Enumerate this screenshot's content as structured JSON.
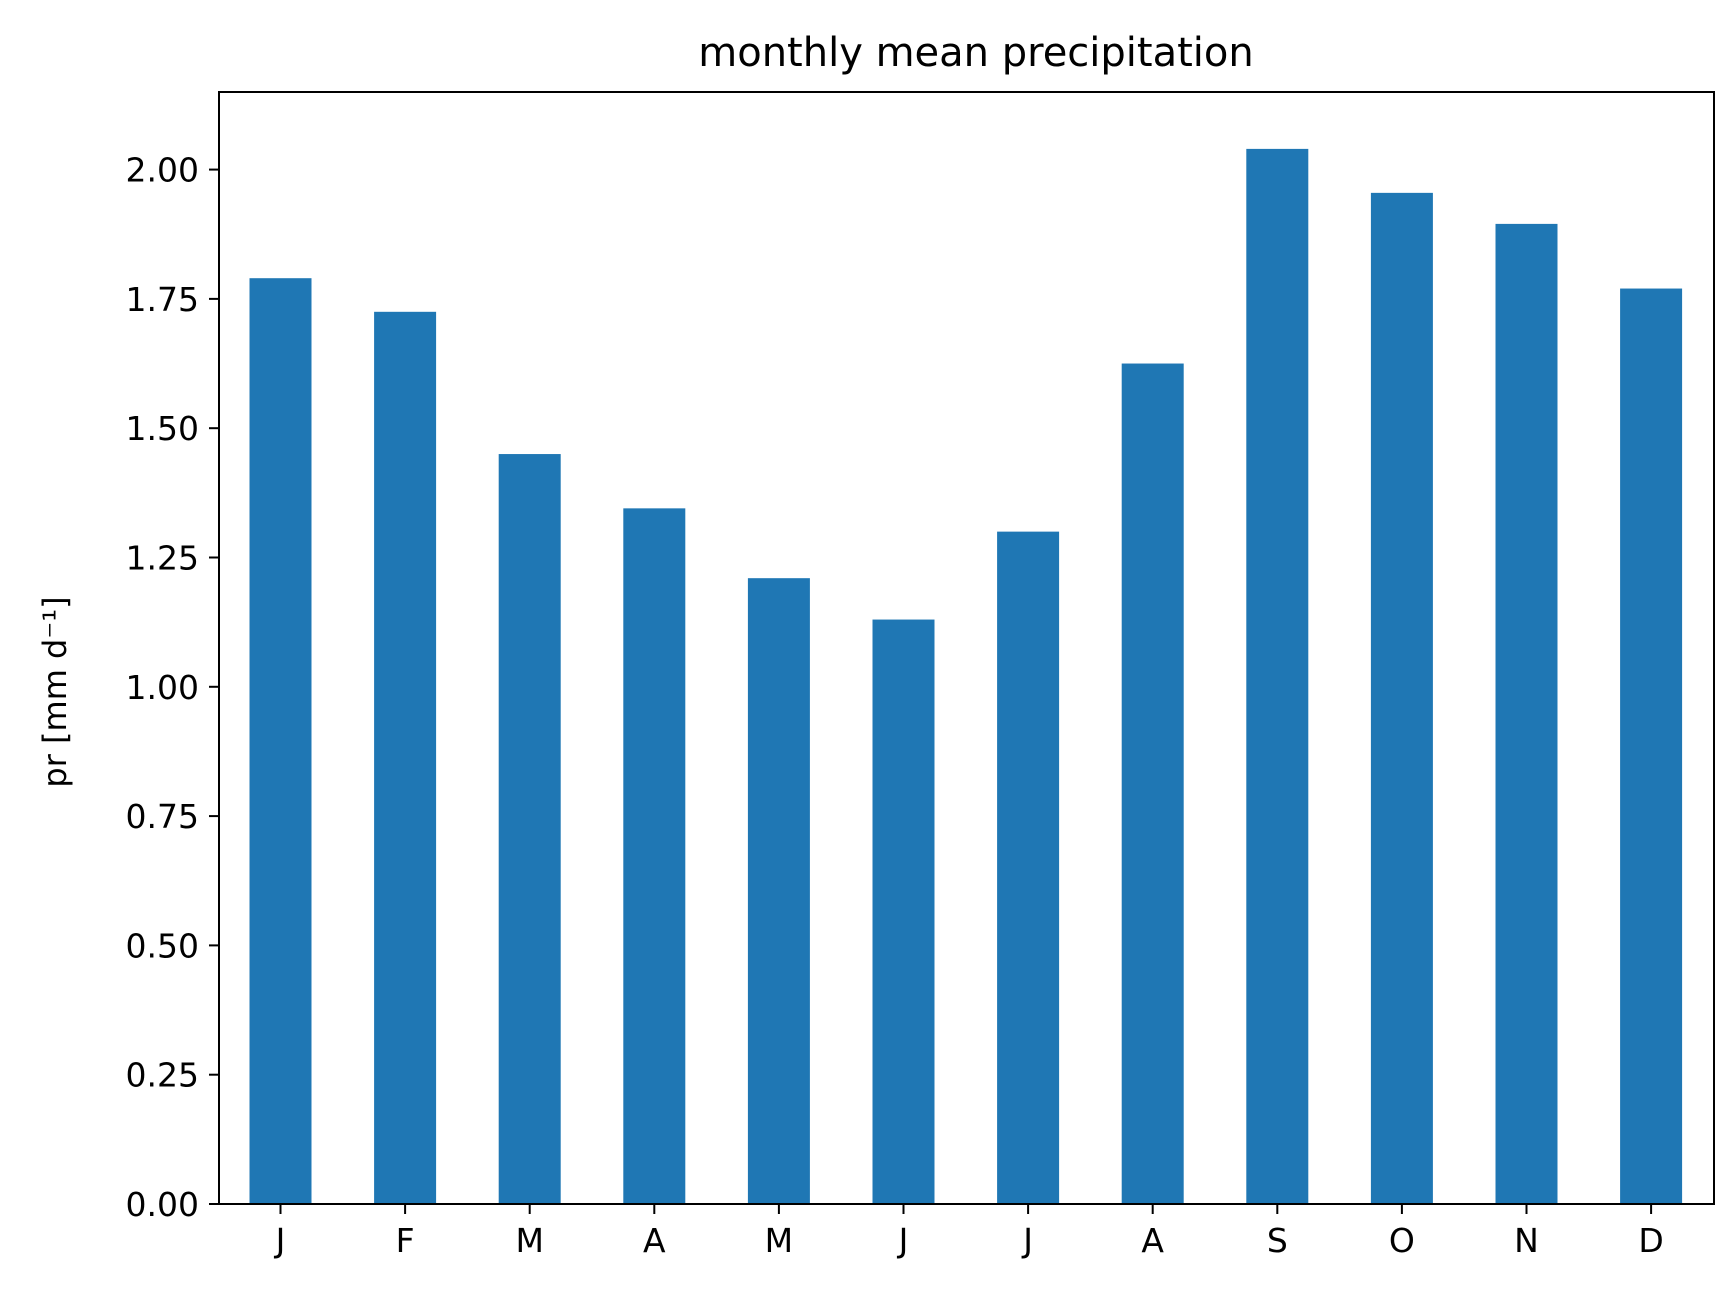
{
  "chart_data": {
    "type": "bar",
    "title": "monthly mean precipitation",
    "xlabel": "",
    "ylabel": "pr [mm d⁻¹]",
    "categories": [
      "J",
      "F",
      "M",
      "A",
      "M",
      "J",
      "J",
      "A",
      "S",
      "O",
      "N",
      "D"
    ],
    "values": [
      1.79,
      1.725,
      1.45,
      1.345,
      1.21,
      1.13,
      1.3,
      1.625,
      2.04,
      1.955,
      1.895,
      1.77
    ],
    "ylim": [
      0,
      2.15
    ],
    "yticks": [
      0.0,
      0.25,
      0.5,
      0.75,
      1.0,
      1.25,
      1.5,
      1.75,
      2.0
    ],
    "ytick_labels": [
      "0.00",
      "0.25",
      "0.50",
      "0.75",
      "1.00",
      "1.25",
      "1.50",
      "1.75",
      "2.00"
    ],
    "bar_color": "#1f77b4",
    "grid": false,
    "legend": "none"
  }
}
